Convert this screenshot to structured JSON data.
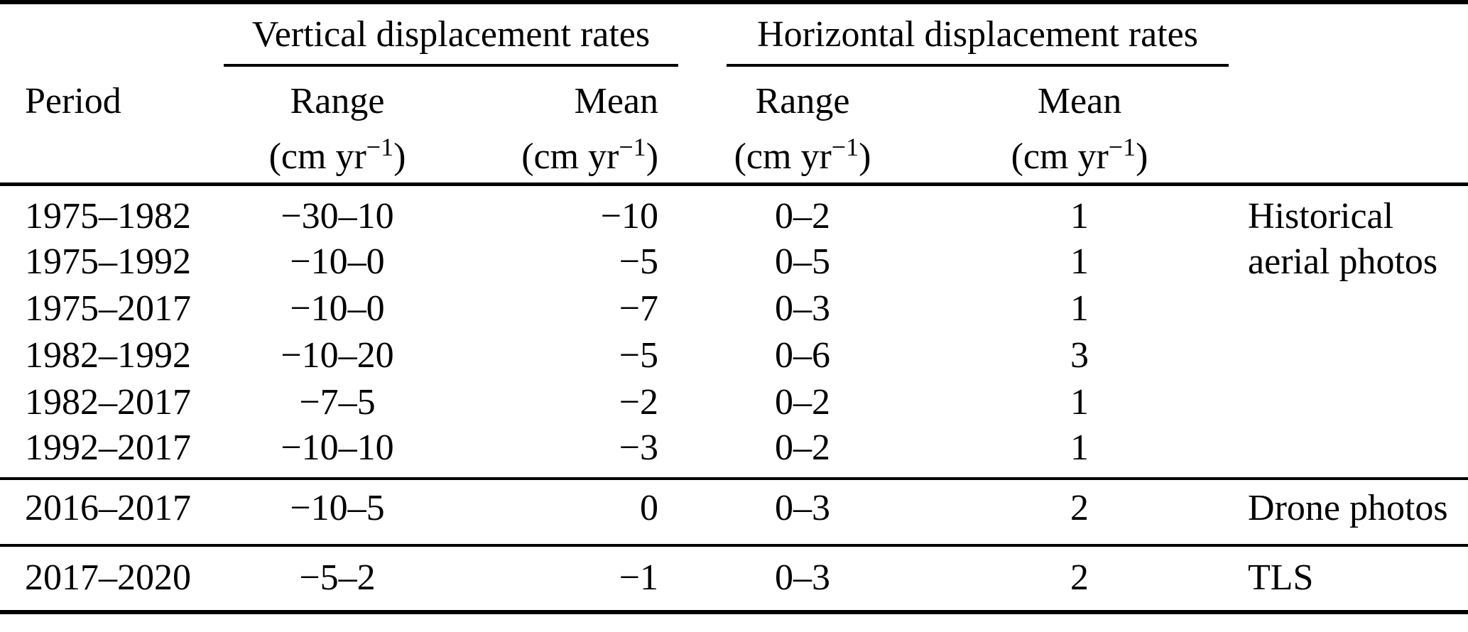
{
  "table": {
    "header": {
      "period_label": "Period",
      "vertical_group_label": "Vertical displacement rates",
      "horizontal_group_label": "Horizontal displacement rates",
      "vertical_range_label": "Range",
      "vertical_mean_label": "Mean",
      "horizontal_range_label": "Range",
      "horizontal_mean_label": "Mean",
      "unit_prefix": "(cm yr",
      "unit_exponent": "−1",
      "unit_suffix": ")"
    },
    "rows": [
      {
        "period": "1975–1982",
        "v_range": "−30–10",
        "v_mean": "−10",
        "h_range": "0–2",
        "h_mean": "1",
        "source": "Historical",
        "section": 1
      },
      {
        "period": "1975–1992",
        "v_range": "−10–0",
        "v_mean": "−5",
        "h_range": "0–5",
        "h_mean": "1",
        "source": "aerial photos",
        "section": 1
      },
      {
        "period": "1975–2017",
        "v_range": "−10–0",
        "v_mean": "−7",
        "h_range": "0–3",
        "h_mean": "1",
        "source": "",
        "section": 1
      },
      {
        "period": "1982–1992",
        "v_range": "−10–20",
        "v_mean": "−5",
        "h_range": "0–6",
        "h_mean": "3",
        "source": "",
        "section": 1
      },
      {
        "period": "1982–2017",
        "v_range": "−7–5",
        "v_mean": "−2",
        "h_range": "0–2",
        "h_mean": "1",
        "source": "",
        "section": 1
      },
      {
        "period": "1992–2017",
        "v_range": "−10–10",
        "v_mean": "−3",
        "h_range": "0–2",
        "h_mean": "1",
        "source": "",
        "section": 1
      },
      {
        "period": "2016–2017",
        "v_range": "−10–5",
        "v_mean": "0",
        "h_range": "0–3",
        "h_mean": "2",
        "source": "Drone photos",
        "section": 2
      },
      {
        "period": "2017–2020",
        "v_range": "−5–2",
        "v_mean": "−1",
        "h_range": "0–3",
        "h_mean": "2",
        "source": "TLS",
        "section": 3
      }
    ]
  },
  "colors": {
    "text": "#000000",
    "background": "#ffffff",
    "rule": "#000000"
  }
}
